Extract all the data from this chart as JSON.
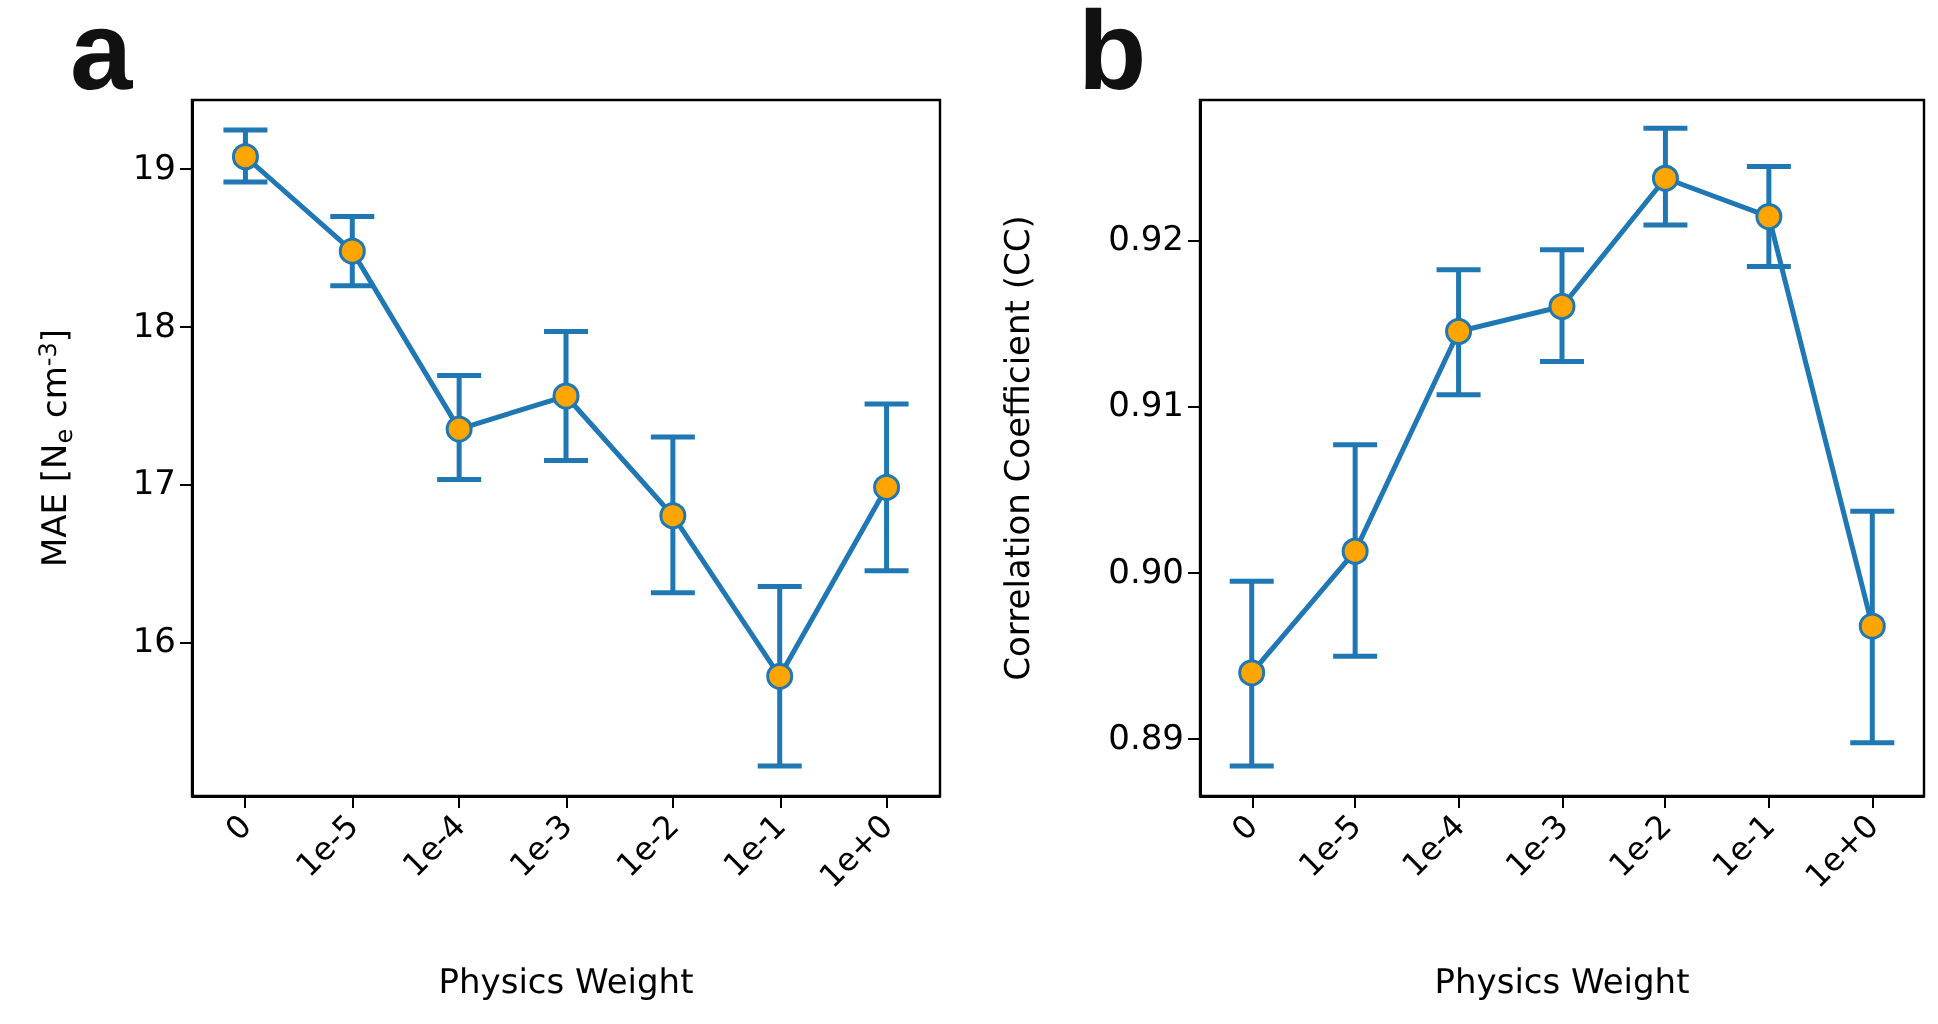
{
  "chart_data": [
    {
      "type": "line",
      "title": "a",
      "xlabel": "Physics Weight",
      "ylabel": "MAE [N$_{e}$ cm$^{-3}$]",
      "categories": [
        "0",
        "1e-5",
        "1e-4",
        "1e-3",
        "1e-2",
        "1e-1",
        "1e+0"
      ],
      "series": [
        {
          "color": "#1f77b4",
          "values": [
            19.08,
            18.48,
            17.35,
            17.56,
            16.8,
            15.78,
            16.98
          ],
          "errors": [
            [
              18.92,
              19.25
            ],
            [
              18.26,
              18.7
            ],
            [
              17.03,
              17.69
            ],
            [
              17.15,
              17.97
            ],
            [
              16.31,
              17.3
            ],
            [
              15.21,
              16.35
            ],
            [
              16.45,
              17.51
            ]
          ]
        }
      ],
      "ylim": [
        15.02,
        19.44
      ],
      "yticks": [
        16,
        17,
        18,
        19
      ],
      "grid": false,
      "marker": "circle",
      "line_style": "solid"
    },
    {
      "type": "line",
      "title": "b",
      "xlabel": "Physics Weight",
      "ylabel": "Correlation Coefficient (CC)",
      "categories": [
        "0",
        "1e-5",
        "1e-4",
        "1e-3",
        "1e-2",
        "1e-1",
        "1e+0"
      ],
      "series": [
        {
          "color": "#1f77b4",
          "values": [
            0.894,
            0.9013,
            0.9145,
            0.916,
            0.9237,
            0.9214,
            0.8968
          ],
          "errors": [
            [
              0.8884,
              0.8995
            ],
            [
              0.895,
              0.9077
            ],
            [
              0.9107,
              0.9182
            ],
            [
              0.9127,
              0.9194
            ],
            [
              0.9209,
              0.9267
            ],
            [
              0.9184,
              0.9244
            ],
            [
              0.8898,
              0.9037
            ]
          ]
        }
      ],
      "ylim": [
        0.8866,
        0.9284
      ],
      "yticks": [
        0.89,
        {
          "value": 0.9,
          "label": "0.90"
        },
        0.91,
        0.92
      ],
      "grid": false,
      "marker": "circle",
      "line_style": "solid"
    }
  ]
}
